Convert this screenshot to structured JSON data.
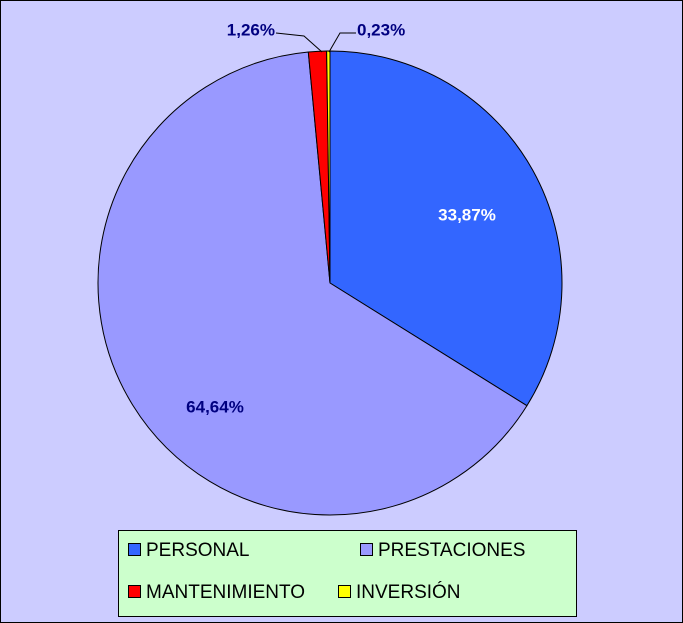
{
  "chart_data": {
    "type": "pie",
    "categories": [
      "PERSONAL",
      "PRESTACIONES",
      "MANTENIMIENTO",
      "INVERSIÓN"
    ],
    "values": [
      33.87,
      64.64,
      1.26,
      0.23
    ],
    "value_labels": [
      "33,87%",
      "64,64%",
      "1,26%",
      "0,23%"
    ],
    "colors": [
      "#3366ff",
      "#9999ff",
      "#ff0000",
      "#ffff00"
    ],
    "legend": "bottom"
  }
}
